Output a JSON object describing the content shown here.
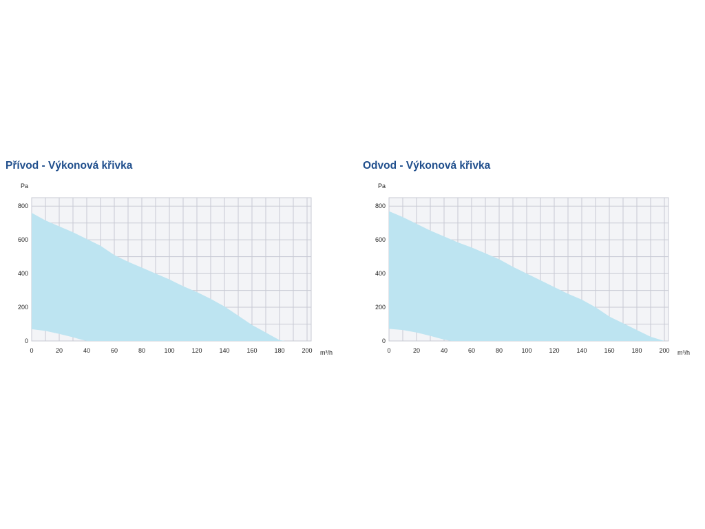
{
  "colors": {
    "title": "#1f4e8c",
    "area": "#bde4f1",
    "plot_bg": "#f3f4f7",
    "grid": "#c7c9d3",
    "text": "#222222"
  },
  "chart_data": [
    {
      "type": "area",
      "title": "Přívod - Výkonová křivka",
      "xlabel": "m³/h",
      "ylabel": "Pa",
      "xlim": [
        0,
        203
      ],
      "ylim": [
        0,
        850
      ],
      "grid": true,
      "xticks": [
        0,
        20,
        40,
        60,
        80,
        100,
        120,
        140,
        160,
        180,
        200
      ],
      "xtick_labels": [
        "0",
        "20",
        "40",
        "60",
        "80",
        "100",
        "120",
        "140",
        "160",
        "180",
        "200"
      ],
      "yticks": [
        0,
        200,
        400,
        600,
        800
      ],
      "ytick_labels": [
        "0",
        "200",
        "400",
        "600",
        "800"
      ],
      "x_grid_step": 10,
      "y_grid_step": 100,
      "series": [
        {
          "role": "upper",
          "x": [
            0,
            10,
            20,
            30,
            40,
            50,
            60,
            70,
            80,
            90,
            100,
            110,
            120,
            130,
            140,
            150,
            160,
            170,
            180,
            184
          ],
          "y": [
            760,
            715,
            680,
            645,
            605,
            565,
            510,
            470,
            435,
            400,
            365,
            325,
            290,
            250,
            205,
            150,
            95,
            50,
            5,
            0
          ]
        },
        {
          "role": "lower",
          "x": [
            0,
            10,
            20,
            30,
            35,
            40
          ],
          "y": [
            70,
            60,
            42,
            22,
            10,
            0
          ]
        }
      ]
    },
    {
      "type": "area",
      "title": "Odvod - Výkonová křivka",
      "xlabel": "m³/h",
      "ylabel": "Pa",
      "xlim": [
        0,
        203
      ],
      "ylim": [
        0,
        850
      ],
      "grid": true,
      "xticks": [
        0,
        20,
        40,
        60,
        80,
        100,
        120,
        140,
        160,
        180,
        200
      ],
      "xtick_labels": [
        "0",
        "20",
        "40",
        "60",
        "80",
        "100",
        "120",
        "140",
        "160",
        "180",
        "200"
      ],
      "yticks": [
        0,
        200,
        400,
        600,
        800
      ],
      "ytick_labels": [
        "0",
        "200",
        "400",
        "600",
        "800"
      ],
      "x_grid_step": 10,
      "y_grid_step": 100,
      "series": [
        {
          "role": "upper",
          "x": [
            0,
            10,
            20,
            30,
            40,
            50,
            60,
            70,
            80,
            90,
            100,
            110,
            120,
            130,
            140,
            150,
            160,
            170,
            180,
            190,
            200
          ],
          "y": [
            770,
            735,
            695,
            655,
            620,
            585,
            555,
            520,
            485,
            440,
            400,
            360,
            320,
            280,
            245,
            200,
            145,
            105,
            65,
            25,
            0
          ]
        },
        {
          "role": "lower",
          "x": [
            0,
            10,
            20,
            30,
            40,
            45
          ],
          "y": [
            72,
            65,
            50,
            30,
            8,
            0
          ]
        }
      ]
    }
  ]
}
